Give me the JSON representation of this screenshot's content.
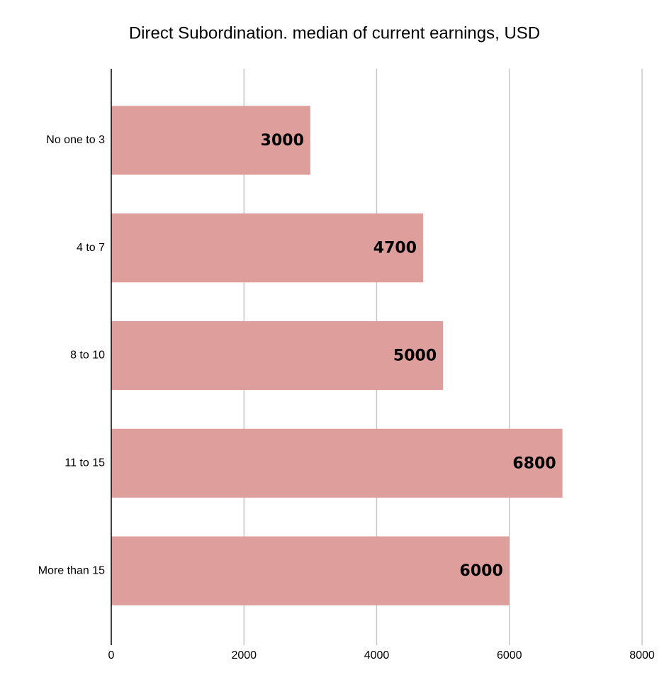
{
  "chart_data": {
    "type": "bar",
    "orientation": "horizontal",
    "title": "Direct Subordination. median of current earnings, USD",
    "categories": [
      "No one to 3",
      "4 to 7",
      "8 to 10",
      "11 to 15",
      "More than 15"
    ],
    "values": [
      3000,
      4700,
      5000,
      6800,
      6000
    ],
    "color": "#dd9e9c",
    "xlim": [
      0,
      8000
    ],
    "xticks": [
      0,
      2000,
      4000,
      6000,
      8000
    ],
    "grid": true
  }
}
